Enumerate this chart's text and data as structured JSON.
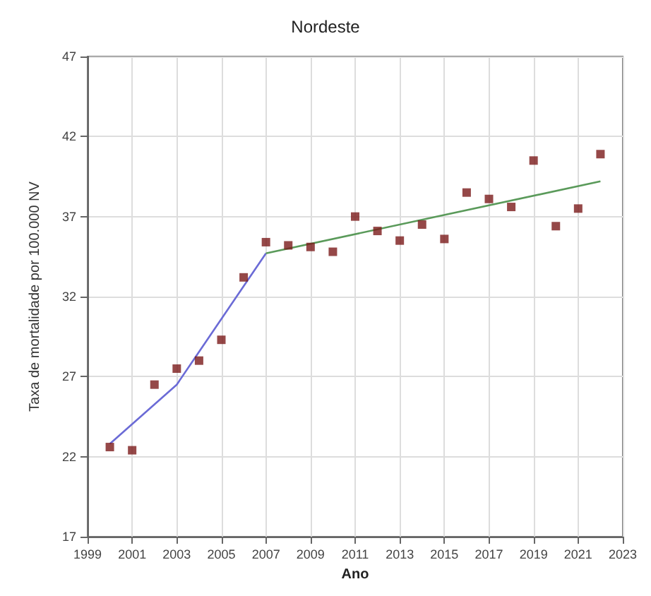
{
  "chart_data": {
    "type": "scatter",
    "title": "Nordeste",
    "xlabel": "Ano",
    "ylabel": "Taxa de mortalidade por 100.000 NV",
    "xlim": [
      1999,
      2023
    ],
    "xticks": [
      1999,
      2001,
      2003,
      2005,
      2007,
      2009,
      2011,
      2013,
      2015,
      2017,
      2019,
      2021,
      2023
    ],
    "ylim": [
      17,
      47
    ],
    "yticks": [
      17,
      22,
      27,
      32,
      37,
      42,
      47
    ],
    "grid": true,
    "marker": "square",
    "series": [
      {
        "color": "#7a1a1a",
        "x": [
          2000,
          2001,
          2002,
          2003,
          2004,
          2005,
          2006,
          2007,
          2008,
          2009,
          2010,
          2011,
          2012,
          2013,
          2014,
          2015,
          2016,
          2017,
          2018,
          2019,
          2020,
          2021,
          2022
        ],
        "values": [
          22.6,
          22.4,
          26.5,
          27.5,
          28.0,
          29.3,
          33.2,
          35.4,
          35.2,
          35.1,
          34.8,
          37.0,
          36.1,
          35.5,
          36.5,
          35.6,
          38.5,
          38.1,
          37.6,
          40.5,
          36.4,
          37.5,
          40.9
        ]
      },
      {
        "type": "line",
        "color": "#6b6bd6",
        "marker": "none",
        "line_style": "solid",
        "x": [
          2000,
          2003,
          2007
        ],
        "values": [
          22.8,
          26.5,
          34.7
        ]
      },
      {
        "type": "line",
        "color": "#5a9a5a",
        "marker": "none",
        "line_style": "solid",
        "x": [
          2007,
          2022
        ],
        "values": [
          34.7,
          39.2
        ]
      }
    ]
  }
}
